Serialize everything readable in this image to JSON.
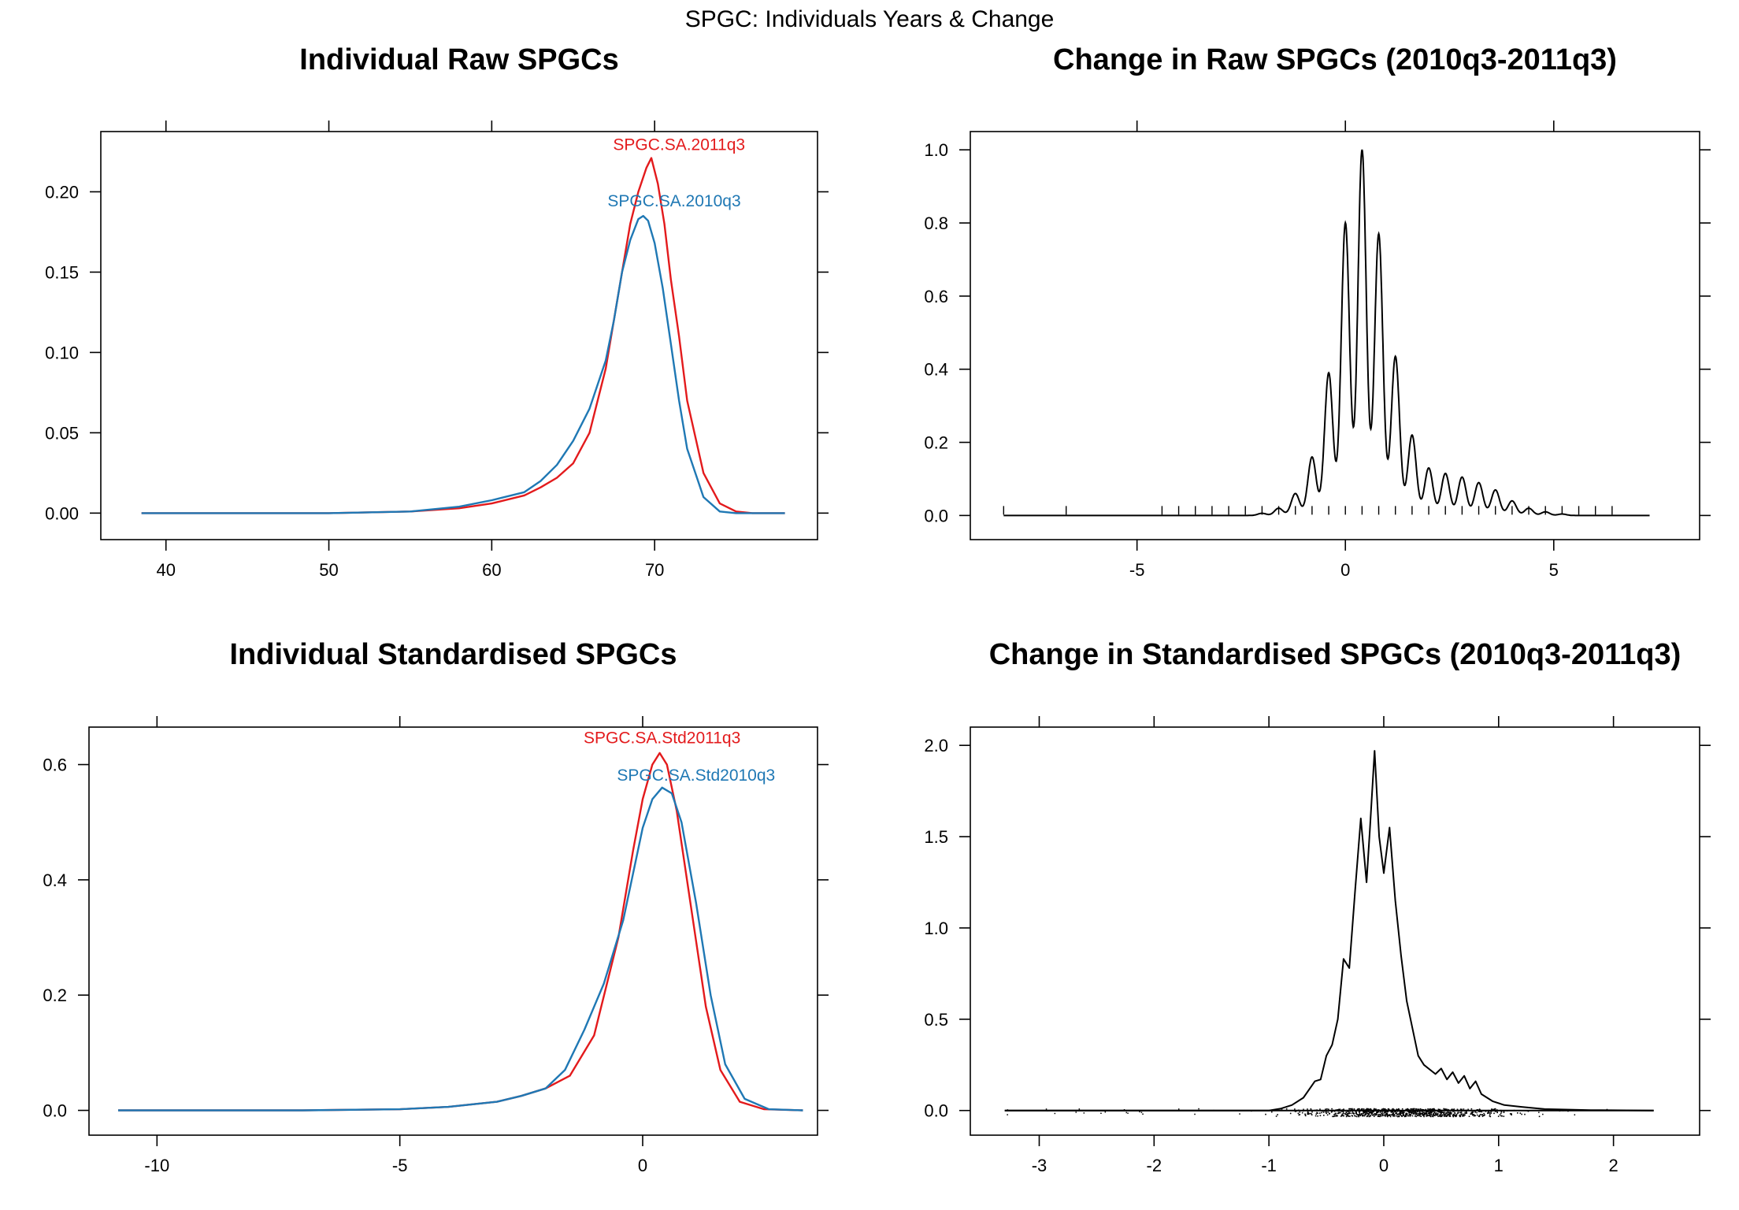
{
  "figure": {
    "title": "SPGC: Individuals Years & Change",
    "colors": {
      "red": "#e31a1c",
      "blue": "#1f78b4",
      "black": "#000000"
    }
  },
  "chart_data": [
    {
      "type": "line",
      "title": "Individual Raw SPGCs",
      "xlabel": "",
      "ylabel": "",
      "xlim": [
        36,
        80
      ],
      "ylim": [
        -0.0165,
        0.2375
      ],
      "xticks": [
        40,
        50,
        60,
        70
      ],
      "xtick_labels": [
        "40",
        "50",
        "60",
        "70"
      ],
      "yticks": [
        0.0,
        0.05,
        0.1,
        0.15,
        0.2
      ],
      "ytick_labels": [
        "0.00",
        "0.05",
        "0.10",
        "0.15",
        "0.20"
      ],
      "series": [
        {
          "name": "SPGC.SA.2011q3",
          "color": "#e31a1c",
          "x": [
            38.5,
            50,
            55,
            58,
            60,
            62,
            63,
            64,
            65,
            66,
            67,
            68,
            68.5,
            69,
            69.5,
            69.8,
            70.2,
            70.6,
            71,
            71.5,
            72,
            73,
            74,
            75,
            76,
            78
          ],
          "y": [
            0,
            0,
            0.001,
            0.003,
            0.006,
            0.011,
            0.016,
            0.022,
            0.031,
            0.05,
            0.09,
            0.15,
            0.18,
            0.2,
            0.215,
            0.221,
            0.205,
            0.18,
            0.145,
            0.11,
            0.07,
            0.025,
            0.006,
            0.001,
            0,
            0
          ]
        },
        {
          "name": "SPGC.SA.2010q3",
          "color": "#1f78b4",
          "x": [
            38.5,
            50,
            55,
            58,
            60,
            62,
            63,
            64,
            65,
            66,
            67,
            67.5,
            68,
            68.5,
            69,
            69.3,
            69.6,
            70,
            70.5,
            71,
            71.5,
            72,
            73,
            74,
            75,
            78
          ],
          "y": [
            0,
            0,
            0.001,
            0.004,
            0.008,
            0.013,
            0.02,
            0.03,
            0.045,
            0.065,
            0.095,
            0.12,
            0.15,
            0.17,
            0.183,
            0.185,
            0.182,
            0.168,
            0.14,
            0.105,
            0.07,
            0.04,
            0.01,
            0.001,
            0,
            0
          ]
        }
      ],
      "annotations": [
        {
          "text": "SPGC.SA.2011q3",
          "x": 71.5,
          "y": 0.226,
          "color": "#e31a1c"
        },
        {
          "text": "SPGC.SA.2010q3",
          "x": 71.2,
          "y": 0.191,
          "color": "#1f78b4"
        }
      ]
    },
    {
      "type": "line",
      "title": "Change in Raw SPGCs (2010q3-2011q3)",
      "xlabel": "",
      "ylabel": "",
      "xlim": [
        -9,
        8.5
      ],
      "ylim": [
        -0.066,
        1.05
      ],
      "xticks": [
        -5,
        0,
        5
      ],
      "xtick_labels": [
        "-5",
        "0",
        "5"
      ],
      "yticks": [
        0.0,
        0.2,
        0.4,
        0.6,
        0.8,
        1.0
      ],
      "ytick_labels": [
        "0.0",
        "0.2",
        "0.4",
        "0.6",
        "0.8",
        "1.0"
      ],
      "density_peaks": {
        "x": [
          -2.0,
          -1.6,
          -1.2,
          -0.8,
          -0.4,
          0.0,
          0.4,
          0.8,
          1.2,
          1.6,
          2.0,
          2.4,
          2.8,
          3.2,
          3.6,
          4.0,
          4.4,
          4.8,
          5.2
        ],
        "y": [
          0.006,
          0.02,
          0.06,
          0.16,
          0.39,
          0.8,
          1.0,
          0.77,
          0.435,
          0.22,
          0.13,
          0.115,
          0.105,
          0.09,
          0.07,
          0.04,
          0.02,
          0.01,
          0.004
        ],
        "width": 0.1,
        "range": [
          -8.2,
          7.3
        ]
      },
      "rug": [
        -8.2,
        -6.7,
        -4.4,
        -4.0,
        -3.6,
        -3.2,
        -2.8,
        -2.4,
        -2.0,
        -1.6,
        -1.2,
        -0.8,
        -0.4,
        0.0,
        0.4,
        0.8,
        1.2,
        1.6,
        2.0,
        2.4,
        2.8,
        3.2,
        3.6,
        4.0,
        4.4,
        4.8,
        5.2,
        5.6,
        6.0,
        6.4
      ]
    },
    {
      "type": "line",
      "title": "Individual Standardised SPGCs",
      "xlabel": "",
      "ylabel": "",
      "xlim": [
        -11.4,
        3.6
      ],
      "ylim": [
        -0.043,
        0.665
      ],
      "xticks": [
        -10,
        -5,
        0
      ],
      "xtick_labels": [
        "-10",
        "-5",
        "0"
      ],
      "yticks": [
        0.0,
        0.2,
        0.4,
        0.6
      ],
      "ytick_labels": [
        "0.0",
        "0.2",
        "0.4",
        "0.6"
      ],
      "series": [
        {
          "name": "SPGC.SA.Std2011q3",
          "color": "#e31a1c",
          "x": [
            -10.8,
            -7,
            -5,
            -4,
            -3,
            -2.5,
            -2,
            -1.5,
            -1,
            -0.5,
            -0.2,
            0,
            0.2,
            0.35,
            0.5,
            0.7,
            1,
            1.3,
            1.6,
            2,
            2.5,
            3.3
          ],
          "y": [
            0,
            0,
            0.002,
            0.006,
            0.015,
            0.025,
            0.038,
            0.06,
            0.13,
            0.3,
            0.45,
            0.54,
            0.6,
            0.62,
            0.6,
            0.52,
            0.35,
            0.18,
            0.07,
            0.015,
            0.002,
            0
          ]
        },
        {
          "name": "SPGC.SA.Std2010q3",
          "color": "#1f78b4",
          "x": [
            -10.8,
            -7,
            -5,
            -4,
            -3,
            -2.5,
            -2,
            -1.6,
            -1.2,
            -0.8,
            -0.4,
            0,
            0.2,
            0.4,
            0.6,
            0.8,
            1.1,
            1.4,
            1.7,
            2.1,
            2.6,
            3.3
          ],
          "y": [
            0,
            0,
            0.002,
            0.006,
            0.015,
            0.025,
            0.038,
            0.07,
            0.14,
            0.22,
            0.33,
            0.49,
            0.54,
            0.56,
            0.55,
            0.5,
            0.36,
            0.2,
            0.08,
            0.02,
            0.002,
            0
          ]
        }
      ],
      "annotations": [
        {
          "text": "SPGC.SA.Std2011q3",
          "x": 0.4,
          "y": 0.637,
          "color": "#e31a1c"
        },
        {
          "text": "SPGC.SA.Std2010q3",
          "x": 1.1,
          "y": 0.572,
          "color": "#1f78b4"
        }
      ]
    },
    {
      "type": "line",
      "title": "Change in Standardised SPGCs (2010q3-2011q3)",
      "xlabel": "",
      "ylabel": "",
      "xlim": [
        -3.6,
        2.75
      ],
      "ylim": [
        -0.135,
        2.1
      ],
      "xticks": [
        -3,
        -2,
        -1,
        0,
        1,
        2
      ],
      "xtick_labels": [
        "-3",
        "-2",
        "-1",
        "0",
        "1",
        "2"
      ],
      "yticks": [
        0.0,
        0.5,
        1.0,
        1.5,
        2.0
      ],
      "ytick_labels": [
        "0.0",
        "0.5",
        "1.0",
        "1.5",
        "2.0"
      ],
      "curve": {
        "x": [
          -3.3,
          -1.0,
          -0.9,
          -0.8,
          -0.7,
          -0.6,
          -0.55,
          -0.5,
          -0.45,
          -0.4,
          -0.35,
          -0.3,
          -0.25,
          -0.2,
          -0.15,
          -0.12,
          -0.08,
          -0.04,
          0.0,
          0.05,
          0.1,
          0.15,
          0.2,
          0.25,
          0.3,
          0.35,
          0.45,
          0.5,
          0.55,
          0.6,
          0.65,
          0.7,
          0.75,
          0.8,
          0.85,
          0.9,
          0.95,
          1.05,
          1.2,
          1.4,
          1.8,
          2.35
        ],
        "y": [
          0,
          0,
          0.01,
          0.03,
          0.07,
          0.16,
          0.17,
          0.3,
          0.36,
          0.5,
          0.83,
          0.78,
          1.2,
          1.6,
          1.25,
          1.55,
          1.97,
          1.5,
          1.3,
          1.55,
          1.15,
          0.85,
          0.6,
          0.45,
          0.3,
          0.25,
          0.2,
          0.23,
          0.17,
          0.21,
          0.15,
          0.19,
          0.12,
          0.16,
          0.09,
          0.07,
          0.05,
          0.03,
          0.02,
          0.008,
          0.002,
          0
        ]
      },
      "rug_range": [
        -3.3,
        2.35
      ]
    }
  ]
}
